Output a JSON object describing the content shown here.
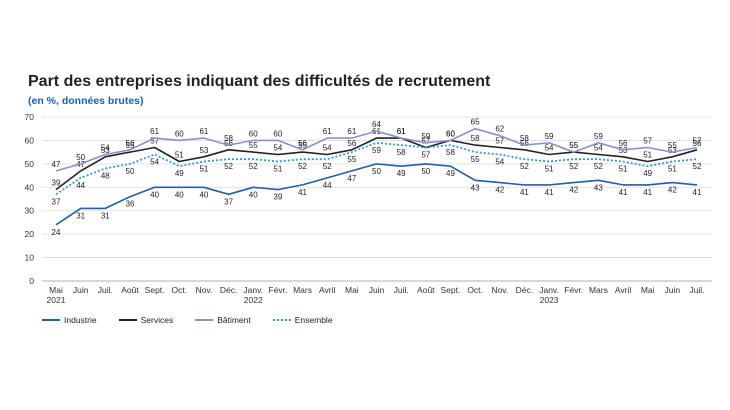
{
  "header": {
    "title": "Part des entreprises indiquant des difficultés de recrutement",
    "subtitle": "(en %, données brutes)"
  },
  "chart_data": {
    "type": "line",
    "title": "Part des entreprises indiquant des difficultés de recrutement",
    "subtitle": "(en %, données brutes)",
    "ylim": [
      0,
      70
    ],
    "yticks": [
      0,
      10,
      20,
      30,
      40,
      50,
      60,
      70
    ],
    "grid": true,
    "legend_position": "bottom-left",
    "categories": [
      "Mai 2021",
      "Juin",
      "Juil.",
      "Août",
      "Sept.",
      "Oct.",
      "Nov.",
      "Déc.",
      "Janv. 2022",
      "Févr.",
      "Mars",
      "Avril",
      "Mai",
      "Juin",
      "Juil.",
      "Août",
      "Sept.",
      "Oct.",
      "Nov.",
      "Déc.",
      "Janv. 2023",
      "Févr.",
      "Mars",
      "Avril",
      "Mai",
      "Juin",
      "Juil."
    ],
    "x_tick_labels": [
      [
        "Mai",
        "2021"
      ],
      [
        "Juin"
      ],
      [
        "Juil."
      ],
      [
        "Août"
      ],
      [
        "Sept."
      ],
      [
        "Oct."
      ],
      [
        "Nov."
      ],
      [
        "Déc."
      ],
      [
        "Janv.",
        "2022"
      ],
      [
        "Févr."
      ],
      [
        "Mars"
      ],
      [
        "Avril"
      ],
      [
        "Mai"
      ],
      [
        "Juin"
      ],
      [
        "Juil."
      ],
      [
        "Août"
      ],
      [
        "Sept."
      ],
      [
        "Oct."
      ],
      [
        "Nov."
      ],
      [
        "Déc."
      ],
      [
        "Janv.",
        "2023"
      ],
      [
        "Févr."
      ],
      [
        "Mars"
      ],
      [
        "Avril"
      ],
      [
        "Mai"
      ],
      [
        "Juin"
      ],
      [
        "Juil."
      ]
    ],
    "series": [
      {
        "name": "Industrie",
        "color": "#1f5fae",
        "style": "solid",
        "values": [
          24,
          31,
          31,
          36,
          40,
          40,
          40,
          37,
          40,
          39,
          41,
          44,
          47,
          50,
          49,
          50,
          49,
          43,
          42,
          41,
          41,
          42,
          43,
          41,
          41,
          42,
          41
        ],
        "labels_above": false
      },
      {
        "name": "Services",
        "color": "#222222",
        "style": "solid",
        "values": [
          39,
          47,
          53,
          55,
          57,
          51,
          53,
          56,
          55,
          54,
          55,
          54,
          56,
          61,
          61,
          57,
          60,
          58,
          57,
          56,
          54,
          55,
          54,
          53,
          51,
          53,
          56
        ],
        "labels_above": true
      },
      {
        "name": "Bâtiment",
        "color": "#8c8fce",
        "style": "solid",
        "values": [
          47,
          50,
          54,
          56,
          61,
          60,
          61,
          58,
          60,
          60,
          56,
          61,
          61,
          64,
          61,
          59,
          60,
          65,
          62,
          58,
          59,
          55,
          59,
          56,
          57,
          55,
          57
        ],
        "labels_above": true
      },
      {
        "name": "Ensemble",
        "color": "#2a9fc8",
        "style": "dotted",
        "values": [
          37,
          44,
          48,
          50,
          54,
          49,
          51,
          52,
          52,
          51,
          52,
          52,
          55,
          59,
          58,
          57,
          58,
          55,
          54,
          52,
          51,
          52,
          52,
          51,
          49,
          51,
          52
        ],
        "labels_above": false
      }
    ]
  }
}
